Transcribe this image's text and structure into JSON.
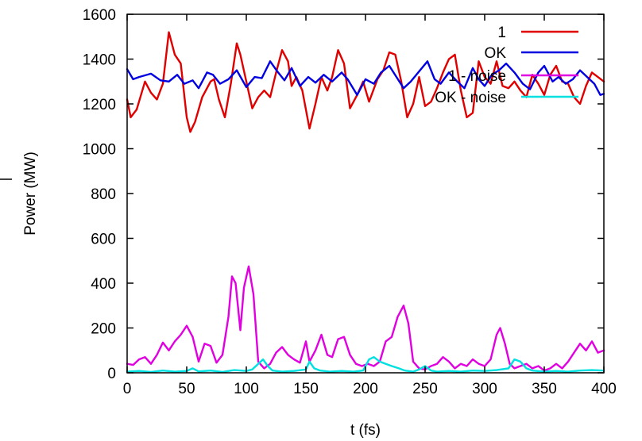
{
  "chart_data": {
    "type": "line",
    "title": "",
    "xlabel": "t (fs)",
    "ylabel": "Power (MW)",
    "xlim": [
      0,
      400
    ],
    "ylim": [
      0,
      1600
    ],
    "xticks": [
      0,
      50,
      100,
      150,
      200,
      250,
      300,
      350,
      400
    ],
    "yticks": [
      0,
      200,
      400,
      600,
      800,
      1000,
      1200,
      1400,
      1600
    ],
    "grid": false,
    "legend": "top-right",
    "series": [
      {
        "name": "1",
        "color": "#e00000",
        "points": [
          [
            0,
            1220
          ],
          [
            3,
            1140
          ],
          [
            8,
            1175
          ],
          [
            15,
            1300
          ],
          [
            20,
            1250
          ],
          [
            25,
            1220
          ],
          [
            30,
            1290
          ],
          [
            35,
            1520
          ],
          [
            40,
            1420
          ],
          [
            45,
            1380
          ],
          [
            50,
            1140
          ],
          [
            53,
            1075
          ],
          [
            57,
            1120
          ],
          [
            63,
            1230
          ],
          [
            70,
            1300
          ],
          [
            73,
            1310
          ],
          [
            77,
            1220
          ],
          [
            82,
            1140
          ],
          [
            87,
            1290
          ],
          [
            92,
            1470
          ],
          [
            95,
            1420
          ],
          [
            100,
            1300
          ],
          [
            105,
            1180
          ],
          [
            110,
            1230
          ],
          [
            115,
            1260
          ],
          [
            120,
            1230
          ],
          [
            125,
            1340
          ],
          [
            130,
            1440
          ],
          [
            135,
            1390
          ],
          [
            138,
            1280
          ],
          [
            142,
            1320
          ],
          [
            147,
            1260
          ],
          [
            153,
            1090
          ],
          [
            158,
            1200
          ],
          [
            163,
            1320
          ],
          [
            168,
            1260
          ],
          [
            172,
            1320
          ],
          [
            177,
            1440
          ],
          [
            182,
            1380
          ],
          [
            187,
            1180
          ],
          [
            193,
            1240
          ],
          [
            198,
            1300
          ],
          [
            203,
            1210
          ],
          [
            210,
            1310
          ],
          [
            215,
            1350
          ],
          [
            220,
            1430
          ],
          [
            225,
            1420
          ],
          [
            230,
            1300
          ],
          [
            235,
            1140
          ],
          [
            240,
            1200
          ],
          [
            245,
            1320
          ],
          [
            250,
            1190
          ],
          [
            255,
            1210
          ],
          [
            260,
            1270
          ],
          [
            265,
            1340
          ],
          [
            270,
            1400
          ],
          [
            275,
            1420
          ],
          [
            280,
            1260
          ],
          [
            285,
            1140
          ],
          [
            290,
            1160
          ],
          [
            295,
            1390
          ],
          [
            300,
            1320
          ],
          [
            305,
            1290
          ],
          [
            310,
            1390
          ],
          [
            315,
            1280
          ],
          [
            320,
            1270
          ],
          [
            325,
            1300
          ],
          [
            330,
            1260
          ],
          [
            335,
            1230
          ],
          [
            340,
            1330
          ],
          [
            345,
            1290
          ],
          [
            350,
            1240
          ],
          [
            355,
            1330
          ],
          [
            360,
            1370
          ],
          [
            365,
            1300
          ],
          [
            370,
            1290
          ],
          [
            375,
            1230
          ],
          [
            380,
            1200
          ],
          [
            385,
            1280
          ],
          [
            390,
            1340
          ],
          [
            395,
            1320
          ],
          [
            400,
            1300
          ]
        ]
      },
      {
        "name": "OK",
        "color": "#0000e0",
        "points": [
          [
            0,
            1355
          ],
          [
            5,
            1310
          ],
          [
            10,
            1320
          ],
          [
            20,
            1335
          ],
          [
            28,
            1305
          ],
          [
            35,
            1300
          ],
          [
            42,
            1330
          ],
          [
            48,
            1290
          ],
          [
            55,
            1305
          ],
          [
            60,
            1270
          ],
          [
            67,
            1340
          ],
          [
            72,
            1330
          ],
          [
            78,
            1290
          ],
          [
            85,
            1310
          ],
          [
            92,
            1350
          ],
          [
            100,
            1275
          ],
          [
            107,
            1320
          ],
          [
            113,
            1315
          ],
          [
            120,
            1390
          ],
          [
            126,
            1345
          ],
          [
            132,
            1305
          ],
          [
            138,
            1360
          ],
          [
            145,
            1280
          ],
          [
            152,
            1320
          ],
          [
            158,
            1295
          ],
          [
            165,
            1330
          ],
          [
            172,
            1300
          ],
          [
            180,
            1340
          ],
          [
            185,
            1310
          ],
          [
            193,
            1240
          ],
          [
            200,
            1310
          ],
          [
            207,
            1290
          ],
          [
            213,
            1340
          ],
          [
            220,
            1370
          ],
          [
            226,
            1320
          ],
          [
            232,
            1270
          ],
          [
            238,
            1300
          ],
          [
            245,
            1345
          ],
          [
            252,
            1390
          ],
          [
            258,
            1310
          ],
          [
            263,
            1290
          ],
          [
            270,
            1340
          ],
          [
            277,
            1300
          ],
          [
            283,
            1270
          ],
          [
            290,
            1360
          ],
          [
            295,
            1310
          ],
          [
            300,
            1280
          ],
          [
            306,
            1330
          ],
          [
            312,
            1350
          ],
          [
            318,
            1380
          ],
          [
            325,
            1340
          ],
          [
            332,
            1290
          ],
          [
            338,
            1265
          ],
          [
            345,
            1340
          ],
          [
            350,
            1370
          ],
          [
            357,
            1300
          ],
          [
            362,
            1320
          ],
          [
            368,
            1290
          ],
          [
            374,
            1310
          ],
          [
            380,
            1350
          ],
          [
            386,
            1320
          ],
          [
            392,
            1290
          ],
          [
            397,
            1240
          ],
          [
            400,
            1245
          ]
        ]
      },
      {
        "name": "1 - noise",
        "color": "#e000e0",
        "points": [
          [
            0,
            40
          ],
          [
            5,
            35
          ],
          [
            10,
            60
          ],
          [
            15,
            70
          ],
          [
            20,
            40
          ],
          [
            25,
            80
          ],
          [
            30,
            135
          ],
          [
            35,
            100
          ],
          [
            40,
            140
          ],
          [
            45,
            170
          ],
          [
            50,
            210
          ],
          [
            55,
            160
          ],
          [
            60,
            50
          ],
          [
            65,
            130
          ],
          [
            70,
            120
          ],
          [
            75,
            45
          ],
          [
            80,
            80
          ],
          [
            85,
            250
          ],
          [
            88,
            430
          ],
          [
            91,
            400
          ],
          [
            95,
            190
          ],
          [
            98,
            380
          ],
          [
            102,
            475
          ],
          [
            106,
            350
          ],
          [
            110,
            50
          ],
          [
            115,
            20
          ],
          [
            120,
            40
          ],
          [
            125,
            90
          ],
          [
            130,
            115
          ],
          [
            135,
            80
          ],
          [
            140,
            60
          ],
          [
            145,
            45
          ],
          [
            150,
            140
          ],
          [
            153,
            50
          ],
          [
            158,
            100
          ],
          [
            163,
            170
          ],
          [
            168,
            80
          ],
          [
            172,
            70
          ],
          [
            177,
            150
          ],
          [
            182,
            160
          ],
          [
            187,
            80
          ],
          [
            192,
            40
          ],
          [
            197,
            30
          ],
          [
            202,
            40
          ],
          [
            207,
            30
          ],
          [
            212,
            50
          ],
          [
            217,
            140
          ],
          [
            222,
            160
          ],
          [
            227,
            250
          ],
          [
            232,
            300
          ],
          [
            236,
            220
          ],
          [
            240,
            50
          ],
          [
            245,
            20
          ],
          [
            250,
            15
          ],
          [
            255,
            30
          ],
          [
            260,
            40
          ],
          [
            265,
            70
          ],
          [
            270,
            50
          ],
          [
            275,
            20
          ],
          [
            280,
            40
          ],
          [
            285,
            30
          ],
          [
            290,
            60
          ],
          [
            295,
            40
          ],
          [
            300,
            30
          ],
          [
            305,
            60
          ],
          [
            310,
            170
          ],
          [
            313,
            200
          ],
          [
            317,
            130
          ],
          [
            321,
            40
          ],
          [
            325,
            20
          ],
          [
            330,
            30
          ],
          [
            335,
            40
          ],
          [
            340,
            20
          ],
          [
            345,
            30
          ],
          [
            350,
            10
          ],
          [
            355,
            20
          ],
          [
            360,
            40
          ],
          [
            365,
            20
          ],
          [
            370,
            50
          ],
          [
            375,
            90
          ],
          [
            380,
            130
          ],
          [
            385,
            100
          ],
          [
            390,
            140
          ],
          [
            395,
            90
          ],
          [
            400,
            100
          ]
        ]
      },
      {
        "name": "OK - noise",
        "color": "#00e0e0",
        "points": [
          [
            0,
            5
          ],
          [
            10,
            8
          ],
          [
            20,
            4
          ],
          [
            30,
            10
          ],
          [
            40,
            5
          ],
          [
            50,
            8
          ],
          [
            55,
            20
          ],
          [
            60,
            6
          ],
          [
            70,
            10
          ],
          [
            80,
            4
          ],
          [
            90,
            12
          ],
          [
            100,
            8
          ],
          [
            105,
            15
          ],
          [
            110,
            40
          ],
          [
            114,
            60
          ],
          [
            118,
            30
          ],
          [
            122,
            10
          ],
          [
            130,
            5
          ],
          [
            140,
            8
          ],
          [
            150,
            15
          ],
          [
            153,
            50
          ],
          [
            157,
            20
          ],
          [
            162,
            10
          ],
          [
            170,
            5
          ],
          [
            180,
            8
          ],
          [
            190,
            5
          ],
          [
            198,
            10
          ],
          [
            203,
            60
          ],
          [
            207,
            70
          ],
          [
            212,
            50
          ],
          [
            217,
            40
          ],
          [
            222,
            30
          ],
          [
            228,
            20
          ],
          [
            233,
            10
          ],
          [
            240,
            5
          ],
          [
            245,
            15
          ],
          [
            250,
            30
          ],
          [
            255,
            10
          ],
          [
            260,
            5
          ],
          [
            270,
            8
          ],
          [
            280,
            5
          ],
          [
            290,
            10
          ],
          [
            300,
            8
          ],
          [
            310,
            12
          ],
          [
            320,
            20
          ],
          [
            325,
            60
          ],
          [
            330,
            50
          ],
          [
            335,
            20
          ],
          [
            340,
            10
          ],
          [
            350,
            5
          ],
          [
            360,
            8
          ],
          [
            370,
            5
          ],
          [
            380,
            10
          ],
          [
            390,
            12
          ],
          [
            400,
            10
          ]
        ]
      }
    ]
  }
}
